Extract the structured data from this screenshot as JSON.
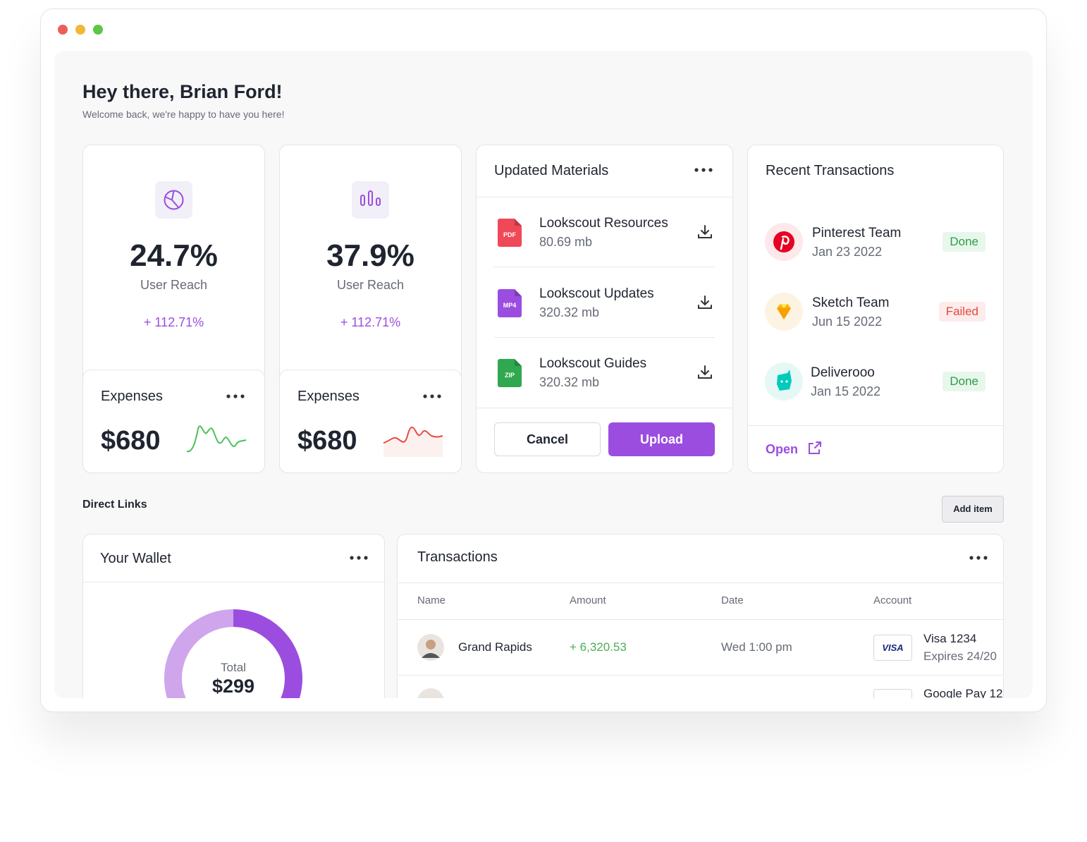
{
  "header": {
    "title": "Hey there, Brian Ford!",
    "subtitle": "Welcome back, we're happy to have you here!"
  },
  "stats": [
    {
      "value": "24.7%",
      "label": "User Reach",
      "change": "+ 112.71%",
      "expenses": {
        "title": "Expenses",
        "amount": "$680"
      }
    },
    {
      "value": "37.9%",
      "label": "User Reach",
      "change": "+ 112.71%",
      "expenses": {
        "title": "Expenses",
        "amount": "$680"
      }
    }
  ],
  "materials": {
    "title": "Updated Materials",
    "items": [
      {
        "name": "Lookscout Resources",
        "size": "80.69 mb",
        "badge": "PDF"
      },
      {
        "name": "Lookscout Updates",
        "size": "320.32 mb",
        "badge": "MP4"
      },
      {
        "name": "Lookscout Guides",
        "size": "320.32 mb",
        "badge": "ZIP"
      }
    ],
    "cancel": "Cancel",
    "upload": "Upload"
  },
  "recent": {
    "title": "Recent Transactions",
    "items": [
      {
        "name": "Pinterest Team",
        "date": "Jan 23 2022",
        "status": "Done"
      },
      {
        "name": "Sketch Team",
        "date": "Jun 15 2022",
        "status": "Failed"
      },
      {
        "name": "Deliverooo",
        "date": "Jan 15 2022",
        "status": "Done"
      }
    ],
    "open": "Open"
  },
  "direct_links": {
    "title": "Direct Links",
    "add": "Add item"
  },
  "wallet": {
    "title": "Your Wallet",
    "total_label": "Total",
    "total": "$299"
  },
  "transactions": {
    "title": "Transactions",
    "columns": [
      "Name",
      "Amount",
      "Date",
      "Account"
    ],
    "rows": [
      {
        "name": "Grand Rapids",
        "amount": "+ 6,320.53",
        "date": "Wed 1:00 pm",
        "card": "VISA",
        "account": "Visa 1234",
        "expires": "Expires 24/20"
      },
      {
        "account": "Google Pay 12"
      }
    ]
  }
}
